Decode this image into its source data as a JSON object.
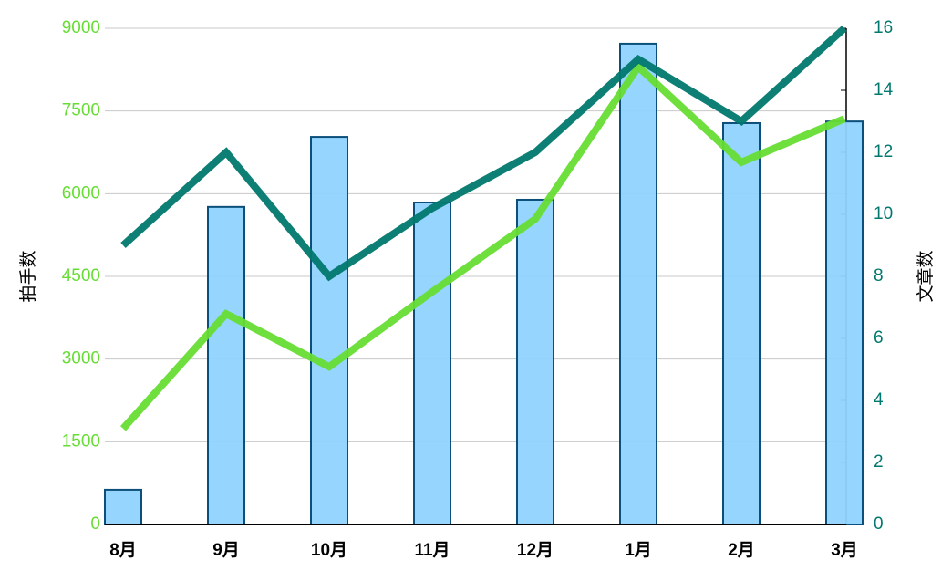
{
  "chart_data": {
    "type": "bar_line",
    "categories": [
      "8月",
      "9月",
      "10月",
      "11月",
      "12月",
      "1月",
      "2月",
      "3月"
    ],
    "ylabel": "拍手数",
    "y2label": "文章数",
    "ylim": [
      0,
      9000
    ],
    "yticks": [
      0,
      1500,
      3000,
      4500,
      6000,
      7500,
      9000
    ],
    "y2lim": [
      0,
      16
    ],
    "y2ticks": [
      0,
      2,
      4,
      6,
      8,
      10,
      12,
      14,
      16
    ],
    "grid": true,
    "ytick_color": "#66dd33",
    "y2tick_color": "#00786e",
    "series": [
      {
        "type": "bar",
        "color": "#8fd3fe",
        "edge_color": "#0b4f7a",
        "values": [
          630,
          5760,
          7030,
          5840,
          5890,
          8720,
          7280,
          7310
        ]
      },
      {
        "type": "line",
        "color": "#66dd33",
        "values": [
          1740,
          3820,
          2860,
          4220,
          5540,
          8300,
          6570,
          7360
        ]
      },
      {
        "type": "line",
        "color": "#00786e",
        "axis": "y2",
        "values": [
          9,
          12,
          8,
          10.2,
          12,
          15,
          13,
          16
        ]
      }
    ]
  }
}
